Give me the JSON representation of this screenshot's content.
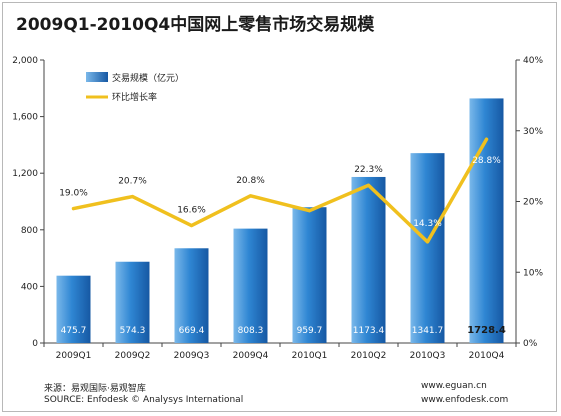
{
  "chart_data": {
    "type": "bar",
    "title": "2009Q1-2010Q4中国网上零售市场交易规模",
    "categories": [
      "2009Q1",
      "2009Q2",
      "2009Q3",
      "2009Q4",
      "2010Q1",
      "2010Q2",
      "2010Q3",
      "2010Q4"
    ],
    "series": [
      {
        "name": "交易规模（亿元）",
        "type": "bar",
        "axis": "left",
        "values": [
          475.7,
          574.3,
          669.4,
          808.3,
          959.7,
          1173.4,
          1341.7,
          1728.4
        ],
        "labels": [
          "475.7",
          "574.3",
          "669.4",
          "808.3",
          "959.7",
          "1173.4",
          "1341.7",
          "1728.4"
        ]
      },
      {
        "name": "环比增长率",
        "type": "line",
        "axis": "right",
        "values": [
          19.0,
          20.7,
          16.6,
          20.8,
          18.7,
          22.3,
          14.3,
          28.8
        ],
        "labels": [
          "19.0%",
          "20.7%",
          "16.6%",
          "20.8%",
          "18.7%",
          "22.3%",
          "14.3%",
          "28.8%"
        ]
      }
    ],
    "y_left": {
      "ylim": [
        0,
        2000
      ],
      "ticks": [
        "0",
        "400",
        "800",
        "1,200",
        "1,600",
        "2,000"
      ],
      "tick_values": [
        0,
        400,
        800,
        1200,
        1600,
        2000
      ]
    },
    "y_right": {
      "ylim": [
        0,
        40
      ],
      "ticks": [
        "0%",
        "10%",
        "20%",
        "30%",
        "40%"
      ],
      "tick_values": [
        0,
        10,
        20,
        30,
        40
      ]
    },
    "grid": false,
    "legend_placement": "top-left",
    "colors": {
      "bar": "#1f74c4",
      "bar_light": "#6fb3ea",
      "line": "#f0c01e",
      "bar_label": "#ffffff",
      "last_bar_label": "#1a1a1a"
    }
  },
  "footer": {
    "source_cn": "来源：易观国际·易观智库",
    "source_en": "SOURCE: Enfodesk © Analysys International",
    "site1": "www.eguan.cn",
    "site2": "www.enfodesk.com"
  }
}
